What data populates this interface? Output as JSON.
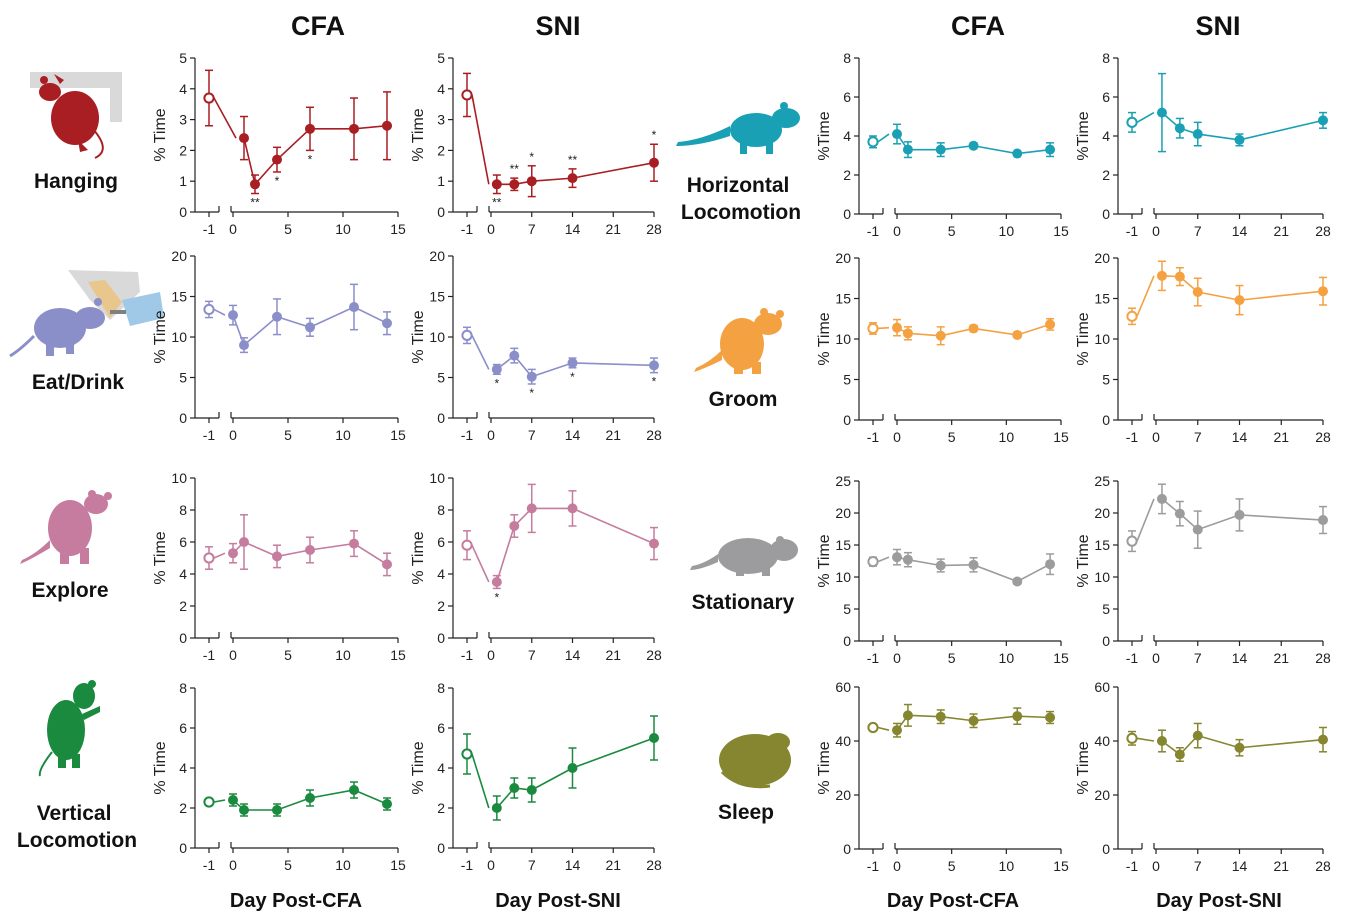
{
  "column_titles": [
    "CFA",
    "SNI",
    "CFA",
    "SNI"
  ],
  "x_axis_labels": [
    "Day Post-CFA",
    "Day Post-SNI",
    "Day Post-CFA",
    "Day Post-SNI"
  ],
  "colors": {
    "hanging": "#a81e23",
    "eat_drink": "#8b8fc9",
    "explore": "#c57c9f",
    "vertical": "#1a8a3f",
    "horizontal": "#1aa0b4",
    "groom": "#f4a142",
    "stationary": "#9c9c9e",
    "sleep": "#85862f"
  },
  "behaviors": [
    {
      "key": "hanging",
      "label_lines": [
        "Hanging"
      ],
      "icon": "hanging-rat-icon"
    },
    {
      "key": "eat_drink",
      "label_lines": [
        "Eat/Drink"
      ],
      "icon": "eating-drinking-rat-icon"
    },
    {
      "key": "explore",
      "label_lines": [
        "Explore"
      ],
      "icon": "exploring-rat-icon"
    },
    {
      "key": "vertical",
      "label_lines": [
        "Vertical",
        "Locomotion"
      ],
      "icon": "rearing-rat-icon"
    },
    {
      "key": "horizontal",
      "label_lines": [
        "Horizontal",
        "Locomotion"
      ],
      "icon": "walking-rat-icon"
    },
    {
      "key": "groom",
      "label_lines": [
        "Groom"
      ],
      "icon": "grooming-rat-icon"
    },
    {
      "key": "stationary",
      "label_lines": [
        "Stationary"
      ],
      "icon": "stationary-rat-icon"
    },
    {
      "key": "sleep",
      "label_lines": [
        "Sleep"
      ],
      "icon": "sleeping-rat-icon"
    }
  ],
  "chart_data": [
    {
      "type": "line",
      "behavior": "hanging",
      "model": "CFA",
      "ylabel": "% Time",
      "ylim": [
        0,
        5
      ],
      "yticks": [
        0,
        1,
        2,
        3,
        4,
        5
      ],
      "xticks": [
        0,
        5,
        10,
        15
      ],
      "baseline": {
        "x": -1,
        "y": 3.7,
        "err": 0.9
      },
      "points": [
        {
          "x": 1,
          "y": 2.4,
          "err": 0.7
        },
        {
          "x": 2,
          "y": 0.9,
          "err": 0.3,
          "sig": "**",
          "sig_pos": "below"
        },
        {
          "x": 4,
          "y": 1.7,
          "err": 0.4,
          "sig": "*",
          "sig_pos": "below"
        },
        {
          "x": 7,
          "y": 2.7,
          "err": 0.7,
          "sig": "*",
          "sig_pos": "below"
        },
        {
          "x": 11,
          "y": 2.7,
          "err": 1.0
        },
        {
          "x": 14,
          "y": 2.8,
          "err": 1.1
        }
      ]
    },
    {
      "type": "line",
      "behavior": "hanging",
      "model": "SNI",
      "ylabel": "% Time",
      "ylim": [
        0,
        5
      ],
      "yticks": [
        0,
        1,
        2,
        3,
        4,
        5
      ],
      "xticks": [
        0,
        7,
        14,
        21,
        28
      ],
      "baseline": {
        "x": -1,
        "y": 3.8,
        "err": 0.7
      },
      "points": [
        {
          "x": 1,
          "y": 0.9,
          "err": 0.3,
          "sig": "**",
          "sig_pos": "below"
        },
        {
          "x": 4,
          "y": 0.9,
          "err": 0.2,
          "sig": "**",
          "sig_pos": "above"
        },
        {
          "x": 7,
          "y": 1.0,
          "err": 0.5,
          "sig": "*",
          "sig_pos": "above"
        },
        {
          "x": 14,
          "y": 1.1,
          "err": 0.3,
          "sig": "**",
          "sig_pos": "above"
        },
        {
          "x": 28,
          "y": 1.6,
          "err": 0.6,
          "sig": "*",
          "sig_pos": "above"
        }
      ]
    },
    {
      "type": "line",
      "behavior": "horizontal",
      "model": "CFA",
      "ylabel": "%Time",
      "ylim": [
        0,
        8
      ],
      "yticks": [
        0,
        2,
        4,
        6,
        8
      ],
      "xticks": [
        0,
        5,
        10,
        15
      ],
      "baseline": {
        "x": -1,
        "y": 3.7,
        "err": 0.3
      },
      "points": [
        {
          "x": 0,
          "y": 4.1,
          "err": 0.5
        },
        {
          "x": 1,
          "y": 3.3,
          "err": 0.4
        },
        {
          "x": 4,
          "y": 3.3,
          "err": 0.35
        },
        {
          "x": 7,
          "y": 3.5,
          "err": 0.15
        },
        {
          "x": 11,
          "y": 3.1,
          "err": 0.1
        },
        {
          "x": 14,
          "y": 3.3,
          "err": 0.35
        }
      ]
    },
    {
      "type": "line",
      "behavior": "horizontal",
      "model": "SNI",
      "ylabel": "%Time",
      "ylim": [
        0,
        8
      ],
      "yticks": [
        0,
        2,
        4,
        6,
        8
      ],
      "xticks": [
        0,
        7,
        14,
        21,
        28
      ],
      "baseline": {
        "x": -1,
        "y": 4.7,
        "err": 0.5
      },
      "points": [
        {
          "x": 1,
          "y": 5.2,
          "err": 2.0
        },
        {
          "x": 4,
          "y": 4.4,
          "err": 0.5
        },
        {
          "x": 7,
          "y": 4.1,
          "err": 0.6
        },
        {
          "x": 14,
          "y": 3.8,
          "err": 0.3
        },
        {
          "x": 28,
          "y": 4.8,
          "err": 0.4
        }
      ]
    },
    {
      "type": "line",
      "behavior": "eat_drink",
      "model": "CFA",
      "ylabel": "% Time",
      "ylim": [
        0,
        20
      ],
      "yticks": [
        0,
        5,
        10,
        15,
        20
      ],
      "xticks": [
        0,
        5,
        10,
        15
      ],
      "baseline": {
        "x": -1,
        "y": 13.4,
        "err": 1.0
      },
      "points": [
        {
          "x": 0,
          "y": 12.7,
          "err": 1.2
        },
        {
          "x": 1,
          "y": 9.0,
          "err": 0.9
        },
        {
          "x": 4,
          "y": 12.5,
          "err": 2.2
        },
        {
          "x": 7,
          "y": 11.2,
          "err": 1.1
        },
        {
          "x": 11,
          "y": 13.7,
          "err": 2.8
        },
        {
          "x": 14,
          "y": 11.7,
          "err": 1.4
        }
      ]
    },
    {
      "type": "line",
      "behavior": "eat_drink",
      "model": "SNI",
      "ylabel": "% Time",
      "ylim": [
        0,
        20
      ],
      "yticks": [
        0,
        5,
        10,
        15,
        20
      ],
      "xticks": [
        0,
        7,
        14,
        21,
        28
      ],
      "baseline": {
        "x": -1,
        "y": 10.2,
        "err": 1.0
      },
      "points": [
        {
          "x": 1,
          "y": 6.0,
          "err": 0.6,
          "sig": "*",
          "sig_pos": "below"
        },
        {
          "x": 4,
          "y": 7.7,
          "err": 0.9
        },
        {
          "x": 7,
          "y": 5.1,
          "err": 0.9,
          "sig": "*",
          "sig_pos": "below"
        },
        {
          "x": 14,
          "y": 6.8,
          "err": 0.6,
          "sig": "*",
          "sig_pos": "below"
        },
        {
          "x": 28,
          "y": 6.5,
          "err": 0.9,
          "sig": "*",
          "sig_pos": "below"
        }
      ]
    },
    {
      "type": "line",
      "behavior": "groom",
      "model": "CFA",
      "ylabel": "% Time",
      "ylim": [
        0,
        20
      ],
      "yticks": [
        0,
        5,
        10,
        15,
        20
      ],
      "xticks": [
        0,
        5,
        10,
        15
      ],
      "baseline": {
        "x": -1,
        "y": 11.3,
        "err": 0.7
      },
      "points": [
        {
          "x": 0,
          "y": 11.4,
          "err": 1.0
        },
        {
          "x": 1,
          "y": 10.7,
          "err": 0.8
        },
        {
          "x": 4,
          "y": 10.4,
          "err": 1.1
        },
        {
          "x": 7,
          "y": 11.3,
          "err": 0.4
        },
        {
          "x": 11,
          "y": 10.5,
          "err": 0.3
        },
        {
          "x": 14,
          "y": 11.8,
          "err": 0.7
        }
      ]
    },
    {
      "type": "line",
      "behavior": "groom",
      "model": "SNI",
      "ylabel": "% Time",
      "ylim": [
        0,
        20
      ],
      "yticks": [
        0,
        5,
        10,
        15,
        20
      ],
      "xticks": [
        0,
        7,
        14,
        21,
        28
      ],
      "baseline": {
        "x": -1,
        "y": 12.8,
        "err": 1.0
      },
      "points": [
        {
          "x": 1,
          "y": 17.8,
          "err": 1.8
        },
        {
          "x": 4,
          "y": 17.7,
          "err": 1.1
        },
        {
          "x": 7,
          "y": 15.8,
          "err": 1.7
        },
        {
          "x": 14,
          "y": 14.8,
          "err": 1.8
        },
        {
          "x": 28,
          "y": 15.9,
          "err": 1.7
        }
      ]
    },
    {
      "type": "line",
      "behavior": "explore",
      "model": "CFA",
      "ylabel": "% Time",
      "ylim": [
        0,
        10
      ],
      "yticks": [
        0,
        2,
        4,
        6,
        8,
        10
      ],
      "xticks": [
        0,
        5,
        10,
        15
      ],
      "baseline": {
        "x": -1,
        "y": 5.0,
        "err": 0.7
      },
      "points": [
        {
          "x": 0,
          "y": 5.3,
          "err": 0.6
        },
        {
          "x": 1,
          "y": 6.0,
          "err": 1.7
        },
        {
          "x": 4,
          "y": 5.1,
          "err": 0.7
        },
        {
          "x": 7,
          "y": 5.5,
          "err": 0.8
        },
        {
          "x": 11,
          "y": 5.9,
          "err": 0.8
        },
        {
          "x": 14,
          "y": 4.6,
          "err": 0.7
        }
      ]
    },
    {
      "type": "line",
      "behavior": "explore",
      "model": "SNI",
      "ylabel": "% Time",
      "ylim": [
        0,
        10
      ],
      "yticks": [
        0,
        2,
        4,
        6,
        8,
        10
      ],
      "xticks": [
        0,
        7,
        14,
        21,
        28
      ],
      "baseline": {
        "x": -1,
        "y": 5.8,
        "err": 0.9
      },
      "points": [
        {
          "x": 1,
          "y": 3.5,
          "err": 0.4,
          "sig": "*",
          "sig_pos": "below"
        },
        {
          "x": 4,
          "y": 7.0,
          "err": 0.7
        },
        {
          "x": 7,
          "y": 8.1,
          "err": 1.5
        },
        {
          "x": 14,
          "y": 8.1,
          "err": 1.1
        },
        {
          "x": 28,
          "y": 5.9,
          "err": 1.0
        }
      ]
    },
    {
      "type": "line",
      "behavior": "stationary",
      "model": "CFA",
      "ylabel": "% Time",
      "ylim": [
        0,
        25
      ],
      "yticks": [
        0,
        5,
        10,
        15,
        20,
        25
      ],
      "xticks": [
        0,
        5,
        10,
        15
      ],
      "baseline": {
        "x": -1,
        "y": 12.4,
        "err": 0.7
      },
      "points": [
        {
          "x": 0,
          "y": 13.1,
          "err": 1.2
        },
        {
          "x": 1,
          "y": 12.7,
          "err": 1.1
        },
        {
          "x": 4,
          "y": 11.8,
          "err": 1.0
        },
        {
          "x": 7,
          "y": 11.9,
          "err": 1.1
        },
        {
          "x": 11,
          "y": 9.3,
          "err": 0.4
        },
        {
          "x": 14,
          "y": 12.0,
          "err": 1.6
        }
      ]
    },
    {
      "type": "line",
      "behavior": "stationary",
      "model": "SNI",
      "ylabel": "% Time",
      "ylim": [
        0,
        25
      ],
      "yticks": [
        0,
        5,
        10,
        15,
        20,
        25
      ],
      "xticks": [
        0,
        7,
        14,
        21,
        28
      ],
      "baseline": {
        "x": -1,
        "y": 15.6,
        "err": 1.6
      },
      "points": [
        {
          "x": 1,
          "y": 22.2,
          "err": 2.3
        },
        {
          "x": 4,
          "y": 19.9,
          "err": 1.9
        },
        {
          "x": 7,
          "y": 17.4,
          "err": 2.9
        },
        {
          "x": 14,
          "y": 19.7,
          "err": 2.5
        },
        {
          "x": 28,
          "y": 18.9,
          "err": 2.1
        }
      ]
    },
    {
      "type": "line",
      "behavior": "vertical",
      "model": "CFA",
      "ylabel": "% Time",
      "ylim": [
        0,
        8
      ],
      "yticks": [
        0,
        2,
        4,
        6,
        8
      ],
      "xticks": [
        0,
        5,
        10,
        15
      ],
      "baseline": {
        "x": -1,
        "y": 2.3,
        "err": 0.1
      },
      "points": [
        {
          "x": 0,
          "y": 2.4,
          "err": 0.3
        },
        {
          "x": 1,
          "y": 1.9,
          "err": 0.3
        },
        {
          "x": 4,
          "y": 1.9,
          "err": 0.3
        },
        {
          "x": 7,
          "y": 2.5,
          "err": 0.4
        },
        {
          "x": 11,
          "y": 2.9,
          "err": 0.4
        },
        {
          "x": 14,
          "y": 2.2,
          "err": 0.3
        }
      ]
    },
    {
      "type": "line",
      "behavior": "vertical",
      "model": "SNI",
      "ylabel": "% Time",
      "ylim": [
        0,
        8
      ],
      "yticks": [
        0,
        2,
        4,
        6,
        8
      ],
      "xticks": [
        0,
        7,
        14,
        21,
        28
      ],
      "baseline": {
        "x": -1,
        "y": 4.7,
        "err": 1.0
      },
      "points": [
        {
          "x": 1,
          "y": 2.0,
          "err": 0.6
        },
        {
          "x": 4,
          "y": 3.0,
          "err": 0.5
        },
        {
          "x": 7,
          "y": 2.9,
          "err": 0.6
        },
        {
          "x": 14,
          "y": 4.0,
          "err": 1.0
        },
        {
          "x": 28,
          "y": 5.5,
          "err": 1.1
        }
      ]
    },
    {
      "type": "line",
      "behavior": "sleep",
      "model": "CFA",
      "ylabel": "% Time",
      "ylim": [
        0,
        60
      ],
      "yticks": [
        0,
        20,
        40,
        60
      ],
      "xticks": [
        0,
        5,
        10,
        15
      ],
      "baseline": {
        "x": -1,
        "y": 45.0,
        "err": 0.8
      },
      "points": [
        {
          "x": 0,
          "y": 44.0,
          "err": 2.5
        },
        {
          "x": 1,
          "y": 49.5,
          "err": 4.0
        },
        {
          "x": 4,
          "y": 49.0,
          "err": 2.5
        },
        {
          "x": 7,
          "y": 47.5,
          "err": 2.5
        },
        {
          "x": 11,
          "y": 49.2,
          "err": 3.0
        },
        {
          "x": 14,
          "y": 48.7,
          "err": 2.2
        }
      ]
    },
    {
      "type": "line",
      "behavior": "sleep",
      "model": "SNI",
      "ylabel": "% Time",
      "ylim": [
        0,
        60
      ],
      "yticks": [
        0,
        20,
        40,
        60
      ],
      "xticks": [
        0,
        7,
        14,
        21,
        28
      ],
      "baseline": {
        "x": -1,
        "y": 41.0,
        "err": 2.5
      },
      "points": [
        {
          "x": 1,
          "y": 40.0,
          "err": 4.0
        },
        {
          "x": 4,
          "y": 35.0,
          "err": 2.5
        },
        {
          "x": 7,
          "y": 42.0,
          "err": 4.5
        },
        {
          "x": 14,
          "y": 37.5,
          "err": 3.0
        },
        {
          "x": 28,
          "y": 40.5,
          "err": 4.5
        }
      ]
    }
  ]
}
